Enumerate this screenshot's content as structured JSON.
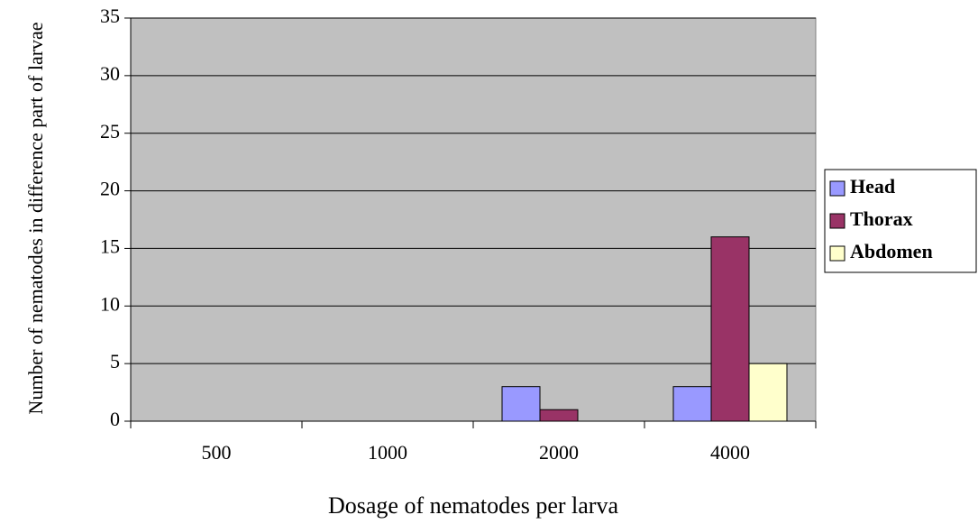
{
  "chart_data": {
    "type": "bar",
    "x_label": "Dosage of nematodes per larva",
    "y_label": "Number of nematodes in difference part of larvae",
    "categories": [
      "500",
      "1000",
      "2000",
      "4000"
    ],
    "series": [
      {
        "name": "Head",
        "color": "#9999ff",
        "values": [
          0,
          0,
          3,
          3
        ]
      },
      {
        "name": "Thorax",
        "color": "#993366",
        "values": [
          0,
          0,
          1,
          16
        ]
      },
      {
        "name": "Abdomen",
        "color": "#ffffcc",
        "values": [
          0,
          0,
          0,
          5
        ]
      }
    ],
    "ylim": [
      0,
      35
    ],
    "yticks": [
      0,
      5,
      10,
      15,
      20,
      25,
      30,
      35
    ],
    "grid": true,
    "legend": "right"
  }
}
